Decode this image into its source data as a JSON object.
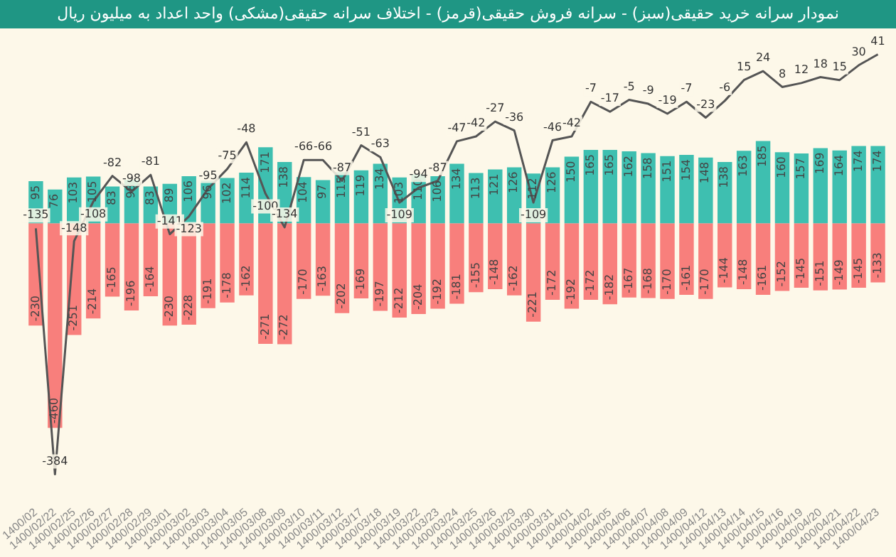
{
  "chart_data": {
    "type": "bar",
    "title": "نمودار سرانه خرید حقیقی(سبز) - سرانه فروش حقیقی(قرمز) - اختلاف سرانه حقیقی(مشکی) واحد اعداد به میلیون ریال",
    "categories": [
      "1400/02",
      "1400/02/22",
      "1400/02/25",
      "1400/02/26",
      "1400/02/27",
      "1400/02/28",
      "1400/02/29",
      "1400/03/01",
      "1400/03/02",
      "1400/03/03",
      "1400/03/04",
      "1400/03/05",
      "1400/03/08",
      "1400/03/09",
      "1400/03/10",
      "1400/03/11",
      "1400/03/12",
      "1400/03/17",
      "1400/03/18",
      "1400/03/19",
      "1400/03/22",
      "1400/03/23",
      "1400/03/24",
      "1400/03/25",
      "1400/03/26",
      "1400/03/29",
      "1400/03/30",
      "1400/03/31",
      "1400/04/01",
      "1400/04/02",
      "1400/04/05",
      "1400/04/06",
      "1400/04/07",
      "1400/04/08",
      "1400/04/09",
      "1400/04/12",
      "1400/04/13",
      "1400/04/14",
      "1400/04/15",
      "1400/04/16",
      "1400/04/19",
      "1400/04/20",
      "1400/04/21",
      "1400/04/22",
      "1400/04/23"
    ],
    "stacked": true,
    "data_labels": true,
    "tick_labels": "x",
    "series": [
      {
        "color": "#3ebfb0",
        "values": [
          95,
          76,
          103,
          105,
          83,
          98,
          83,
          89,
          106,
          96,
          102,
          114,
          171,
          138,
          104,
          97,
          115,
          119,
          134,
          103,
          110,
          106,
          134,
          113,
          121,
          126,
          112,
          126,
          150,
          165,
          165,
          162,
          158,
          151,
          154,
          148,
          138,
          163,
          185,
          160,
          157,
          169,
          164,
          174,
          174
        ]
      },
      {
        "color": "#f87f7c",
        "values": [
          -230,
          -460,
          -251,
          -214,
          -165,
          -196,
          -164,
          -230,
          -228,
          -191,
          -178,
          -162,
          -271,
          -272,
          -170,
          -163,
          -202,
          -169,
          -197,
          -212,
          -204,
          -192,
          -181,
          -155,
          -148,
          -162,
          -221,
          -172,
          -192,
          -172,
          -182,
          -167,
          -168,
          -170,
          -161,
          -170,
          -144,
          -148,
          -161,
          -152,
          -145,
          -151,
          -149,
          -145,
          -133
        ]
      },
      {
        "type": "line",
        "axis": "y2",
        "color": "#555555",
        "values": [
          -135,
          -384,
          -148,
          -108,
          -82,
          -98,
          -81,
          -141,
          -123,
          -95,
          -75,
          -48,
          -100,
          -134,
          -66,
          -66,
          -87,
          -51,
          -63,
          -109,
          -94,
          -87,
          -47,
          -42,
          -27,
          -36,
          -109,
          -46,
          -42,
          -7,
          -17,
          -5,
          -9,
          -19,
          -7,
          -23,
          -6,
          15,
          24,
          8,
          12,
          18,
          15,
          30,
          41
        ]
      }
    ]
  }
}
